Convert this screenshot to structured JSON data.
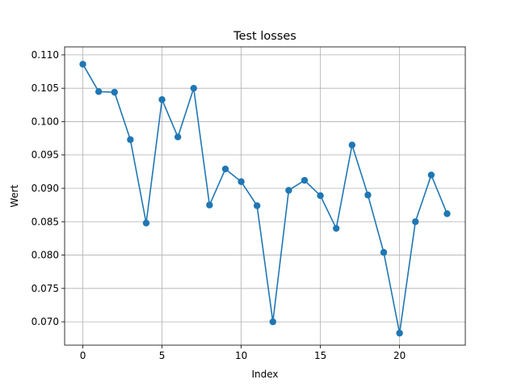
{
  "chart_data": {
    "type": "line",
    "title": "Test losses",
    "xlabel": "Index",
    "ylabel": "Wert",
    "xlim": [
      -1.15,
      24.15
    ],
    "ylim": [
      0.0665,
      0.1112
    ],
    "xticks": [
      0,
      5,
      10,
      15,
      20
    ],
    "yticks": [
      0.07,
      0.075,
      0.08,
      0.085,
      0.09,
      0.095,
      0.1,
      0.105,
      0.11
    ],
    "ytick_labels": [
      "0.070",
      "0.075",
      "0.080",
      "0.085",
      "0.090",
      "0.095",
      "0.100",
      "0.105",
      "0.110"
    ],
    "grid": true,
    "color": "#1f77b4",
    "marker": "circle",
    "series": [
      {
        "x": [
          0,
          1,
          2,
          3,
          4,
          5,
          6,
          7,
          8,
          9,
          10,
          11,
          12,
          13,
          14,
          15,
          16,
          17,
          18,
          19,
          20,
          21,
          22,
          23
        ],
        "values": [
          0.1086,
          0.1045,
          0.1044,
          0.0973,
          0.0848,
          0.1033,
          0.0977,
          0.105,
          0.0875,
          0.0929,
          0.091,
          0.0874,
          0.07,
          0.0897,
          0.0912,
          0.0889,
          0.084,
          0.0965,
          0.089,
          0.0804,
          0.0683,
          0.085,
          0.092,
          0.0862
        ]
      }
    ]
  }
}
